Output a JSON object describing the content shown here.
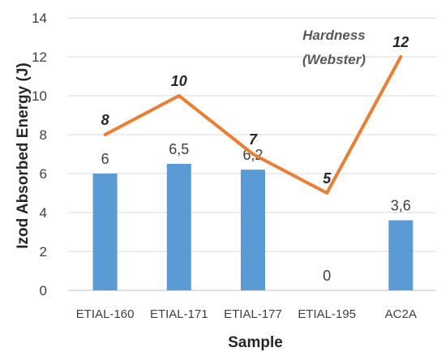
{
  "chart_data": {
    "type": "bar",
    "categories": [
      "ETIAL-160",
      "ETIAL-171",
      "ETIAL-177",
      "ETIAL-195",
      "AC2A"
    ],
    "xlabel": "Sample",
    "ylabel": "Izod Absorbed Energy (J)",
    "ylim": [
      0,
      14
    ],
    "yticks": [
      0,
      2,
      4,
      6,
      8,
      10,
      12,
      14
    ],
    "ytick_labels": [
      "0",
      "2",
      "4",
      "6",
      "8",
      "10",
      "12",
      "14"
    ],
    "grid": true,
    "legend": "none",
    "series": [
      {
        "type": "bar",
        "color": "#5b9bd5",
        "values": [
          6,
          6.5,
          6.2,
          0,
          3.6
        ],
        "data_labels": [
          "6",
          "6,5",
          "6,2",
          "0",
          "3,6"
        ]
      },
      {
        "type": "line",
        "name": "Hardness (Webster)",
        "name_lines": [
          "Hardness",
          "(Webster)"
        ],
        "color": "#ed7d31",
        "values": [
          8,
          10,
          7,
          5,
          12
        ],
        "data_labels": [
          "8",
          "10",
          "7",
          "5",
          "12"
        ]
      }
    ]
  }
}
